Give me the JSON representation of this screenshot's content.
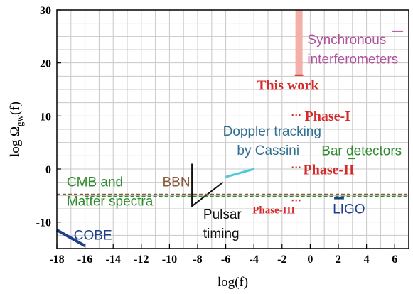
{
  "chart_data": {
    "type": "line",
    "title": "",
    "xlabel": "log(f)",
    "ylabel_main": "log Ω",
    "ylabel_sub": "gw",
    "ylabel_tail": "(f)",
    "xlim": [
      -18,
      7
    ],
    "ylim": [
      -15,
      30
    ],
    "x_ticks": [
      -18,
      -16,
      -14,
      -12,
      -10,
      -8,
      -6,
      -4,
      -2,
      0,
      2,
      4,
      6
    ],
    "y_ticks": [
      -10,
      0,
      10,
      20,
      30
    ],
    "y_tick_labels": [
      "-10",
      "0",
      "10",
      "20",
      "30"
    ],
    "grid": true,
    "colors": {
      "grid": "#c8c8c8",
      "cobe": "#1f3f8c",
      "cassini": "#4fc8d8",
      "pulsar": "#111111",
      "bbn": "#8b5a3c",
      "cmb": "#2e8b2e",
      "this_work": "#f4b0a8",
      "red": "#d42a2a",
      "ligo": "#1f3f8c",
      "bar": "#2e8b2e",
      "sync": "#b0509a"
    },
    "series": [
      {
        "key": "cobe",
        "x": [
          -18,
          -16
        ],
        "y": [
          -11.5,
          -14.5
        ]
      },
      {
        "key": "cassini",
        "x": [
          -6,
          -4
        ],
        "y": [
          -1.5,
          0
        ]
      },
      {
        "key": "pulsar",
        "x": [
          -8.4,
          -8.4,
          -6.2
        ],
        "y": [
          1,
          -7,
          -2.5
        ]
      },
      {
        "key": "bbn_line",
        "x": [
          -18,
          7
        ],
        "y": [
          -4.8,
          -4.8
        ]
      },
      {
        "key": "cmb_line",
        "x": [
          -16,
          7
        ],
        "y": [
          -5.2,
          -5.2
        ]
      },
      {
        "key": "this_work_bar",
        "x": [
          -0.8,
          -0.8
        ],
        "y": [
          17.5,
          30
        ]
      },
      {
        "key": "this_work_tick",
        "x": [
          -1.1,
          -0.5
        ],
        "y": [
          17.7,
          17.7
        ]
      },
      {
        "key": "phase1",
        "x": [
          -1.3,
          -0.7
        ],
        "y": [
          10.2,
          10.2
        ]
      },
      {
        "key": "phase2",
        "x": [
          -1.3,
          -0.7
        ],
        "y": [
          0.3,
          0.3
        ]
      },
      {
        "key": "phase3",
        "x": [
          -1.3,
          -0.7
        ],
        "y": [
          -5.9,
          -5.9
        ]
      },
      {
        "key": "ligo",
        "x": [
          1.7,
          2.4
        ],
        "y": [
          -5.5,
          -5.5
        ]
      },
      {
        "key": "bar",
        "x": [
          2.7,
          3.2
        ],
        "y": [
          2,
          2
        ]
      },
      {
        "key": "sync",
        "x": [
          5.8,
          6.6
        ],
        "y": [
          26,
          26
        ]
      }
    ],
    "annotations": [
      {
        "key": "cobe",
        "text": "COBE",
        "x": -16.8,
        "y": -13.3
      },
      {
        "key": "cassini1",
        "text": "Doppler tracking",
        "x": -6.2,
        "y": 6.3
      },
      {
        "key": "cassini2",
        "text": "by Cassini",
        "x": -5.2,
        "y": 2.7
      },
      {
        "key": "pulsar1",
        "text": "Pulsar",
        "x": -7.6,
        "y": -9.4
      },
      {
        "key": "pulsar2",
        "text": "timing",
        "x": -7.6,
        "y": -13.0
      },
      {
        "key": "bbn",
        "text": "BBN",
        "x": -10.5,
        "y": -3.3
      },
      {
        "key": "cmb1",
        "text": "CMB and",
        "x": -17.3,
        "y": -3.3
      },
      {
        "key": "cmb2",
        "text": "Matter spectra",
        "x": -17.3,
        "y": -6.9
      },
      {
        "key": "this_work",
        "text": "This work",
        "x": -3.8,
        "y": 14.9
      },
      {
        "key": "phase1",
        "text": "Phase-I",
        "x": -0.4,
        "y": 9.1
      },
      {
        "key": "phase2",
        "text": "Phase-II",
        "x": -0.5,
        "y": -1.0
      },
      {
        "key": "phase3",
        "text": "Phase-III",
        "x": -4.1,
        "y": -8.4
      },
      {
        "key": "ligo",
        "text": "LIGO",
        "x": 1.6,
        "y": -8.4
      },
      {
        "key": "bar",
        "text": "Bar detectors",
        "x": 0.8,
        "y": 2.6
      },
      {
        "key": "sync1",
        "text": "Synchronous",
        "x": -0.2,
        "y": 23.6
      },
      {
        "key": "sync2",
        "text": "interferometers",
        "x": -0.2,
        "y": 19.9
      }
    ]
  }
}
